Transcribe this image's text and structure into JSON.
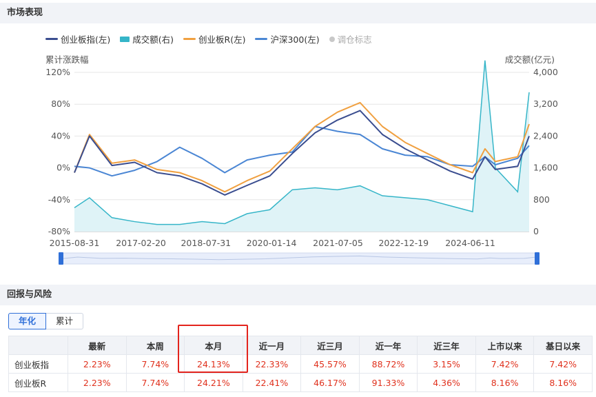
{
  "section1_title": "市场表现",
  "section2_title": "回报与风险",
  "legend": [
    {
      "label": "创业板指(左)",
      "color": "#3a4d8f",
      "type": "line"
    },
    {
      "label": "成交额(右)",
      "color": "#35b5c8",
      "type": "bar"
    },
    {
      "label": "创业板R(左)",
      "color": "#f0a040",
      "type": "line"
    },
    {
      "label": "沪深300(左)",
      "color": "#4a86d4",
      "type": "line"
    },
    {
      "label": "调仓标志",
      "color": "#c8c8c8",
      "type": "dot"
    }
  ],
  "left_axis_title": "累计涨跌幅",
  "right_axis_title": "成交额(亿元)",
  "chart_data": {
    "type": "line",
    "x_ticks": [
      "2015-08-31",
      "2017-02-20",
      "2018-07-31",
      "2020-01-14",
      "2021-07-05",
      "2022-12-19",
      "2024-06-11"
    ],
    "y_left_ticks": [
      "120%",
      "80%",
      "40%",
      "0%",
      "-40%",
      "-80%"
    ],
    "y_right_ticks": [
      "4,000",
      "3,200",
      "2,400",
      "1,600",
      "800",
      "0"
    ],
    "ylim_left": [
      -80,
      120
    ],
    "ylim_right": [
      0,
      4000
    ],
    "grid": true,
    "legend_position": "top",
    "x_dates": [
      "2015-08-31",
      "2015-12-31",
      "2016-06-30",
      "2016-12-31",
      "2017-06-30",
      "2017-12-31",
      "2018-06-30",
      "2018-12-31",
      "2019-06-30",
      "2019-12-31",
      "2020-06-30",
      "2020-12-31",
      "2021-06-30",
      "2021-12-31",
      "2022-06-30",
      "2022-12-31",
      "2023-06-30",
      "2023-12-31",
      "2024-06-30",
      "2024-10-08",
      "2024-12-31",
      "2025-06-30",
      "2025-10-01"
    ],
    "series": [
      {
        "name": "创业板指(左)",
        "axis": "left",
        "values": [
          -6,
          40,
          3,
          7,
          -6,
          -10,
          -20,
          -34,
          -22,
          -10,
          18,
          44,
          60,
          72,
          42,
          24,
          10,
          -4,
          -14,
          14,
          -2,
          2,
          40
        ]
      },
      {
        "name": "创业板R(左)",
        "axis": "left",
        "values": [
          -6,
          42,
          6,
          10,
          -2,
          -6,
          -16,
          -30,
          -16,
          -4,
          24,
          52,
          70,
          82,
          52,
          32,
          18,
          4,
          -6,
          24,
          8,
          14,
          55
        ]
      },
      {
        "name": "沪深300(左)",
        "axis": "left",
        "values": [
          2,
          0,
          -10,
          -3,
          8,
          26,
          12,
          -6,
          10,
          16,
          20,
          52,
          46,
          42,
          24,
          16,
          14,
          4,
          2,
          14,
          4,
          12,
          28
        ]
      },
      {
        "name": "成交额(右)",
        "axis": "right",
        "values": [
          600,
          850,
          350,
          250,
          180,
          180,
          250,
          200,
          450,
          550,
          1050,
          1100,
          1050,
          1150,
          900,
          850,
          800,
          650,
          500,
          4300,
          1600,
          1000,
          3500
        ]
      }
    ]
  },
  "tabs": [
    "年化",
    "累计"
  ],
  "table": {
    "headers": [
      "",
      "最新",
      "本周",
      "本月",
      "近一月",
      "近三月",
      "近一年",
      "近三年",
      "上市以来",
      "基日以来"
    ],
    "rows": [
      {
        "name": "创业板指",
        "values": [
          "2.23%",
          "7.74%",
          "24.13%",
          "22.33%",
          "45.57%",
          "88.72%",
          "3.15%",
          "7.42%",
          "7.42%"
        ]
      },
      {
        "name": "创业板R",
        "values": [
          "2.23%",
          "7.74%",
          "24.21%",
          "22.41%",
          "46.17%",
          "91.33%",
          "4.36%",
          "8.16%",
          "8.16%"
        ]
      }
    ]
  }
}
